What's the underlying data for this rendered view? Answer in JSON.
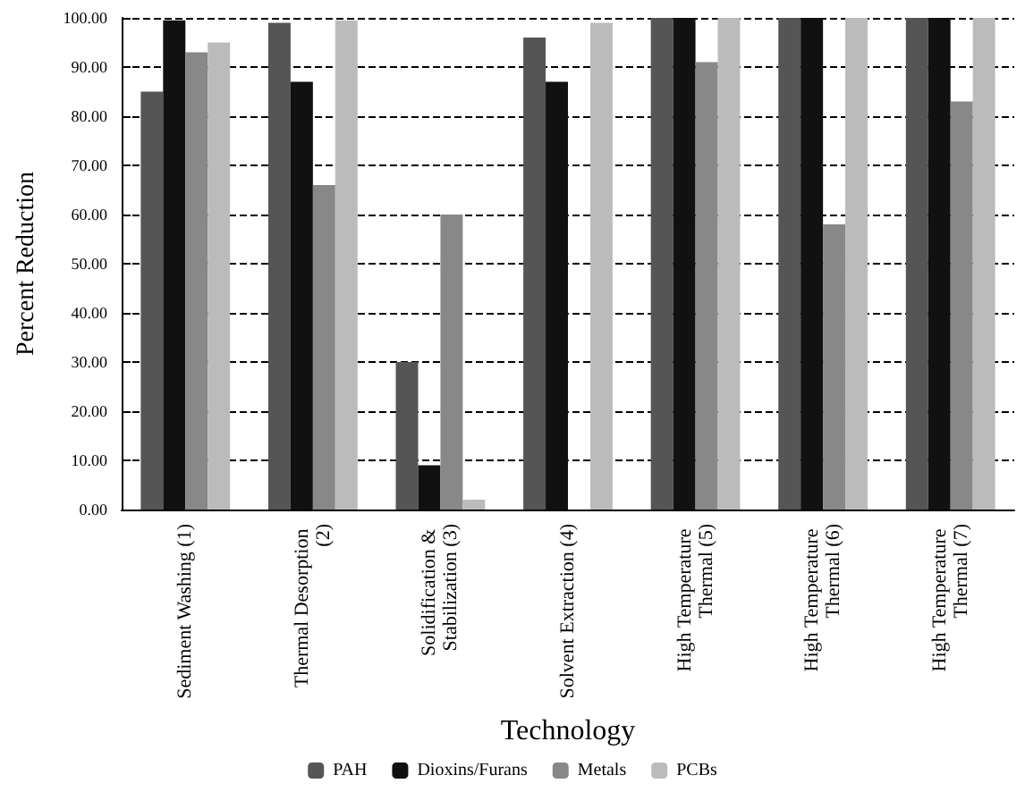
{
  "chart_data": {
    "type": "bar",
    "xlabel": "Technology",
    "ylabel": "Percent Reduction",
    "categories": [
      "Sediment Washing (1)",
      "Thermal Desorption (2)",
      "Solidification & Stabilization (3)",
      "Solvent Extraction (4)",
      "High Temperature Thermal (5)",
      "High Temperature Thermal (6)",
      "High Temperature Thermal (7)"
    ],
    "series": [
      {
        "name": "PAH",
        "color": "#555555",
        "values": [
          85,
          99,
          30,
          96,
          100,
          100,
          100
        ]
      },
      {
        "name": "Dioxins/Furans",
        "color": "#111111",
        "values": [
          99.5,
          87,
          9,
          87,
          100,
          100,
          100
        ]
      },
      {
        "name": "Metals",
        "color": "#888888",
        "values": [
          93,
          66,
          60,
          null,
          91,
          58,
          83
        ]
      },
      {
        "name": "PCBs",
        "color": "#bbbbbb",
        "values": [
          95,
          99.5,
          2,
          99,
          100,
          100,
          100
        ]
      }
    ],
    "ylim": [
      0,
      100
    ],
    "yticks": [
      {
        "value": 0,
        "label": "0.00"
      },
      {
        "value": 10,
        "label": "10.00"
      },
      {
        "value": 20,
        "label": "20.00"
      },
      {
        "value": 30,
        "label": "30.00"
      },
      {
        "value": 40,
        "label": "40.00"
      },
      {
        "value": 50,
        "label": "50.00"
      },
      {
        "value": 60,
        "label": "60.00"
      },
      {
        "value": 70,
        "label": "70.00"
      },
      {
        "value": 80,
        "label": "80.00"
      },
      {
        "value": 90,
        "label": "90.00"
      },
      {
        "value": 100,
        "label": "100.00"
      }
    ],
    "grid": "y",
    "legend": "bottom"
  }
}
